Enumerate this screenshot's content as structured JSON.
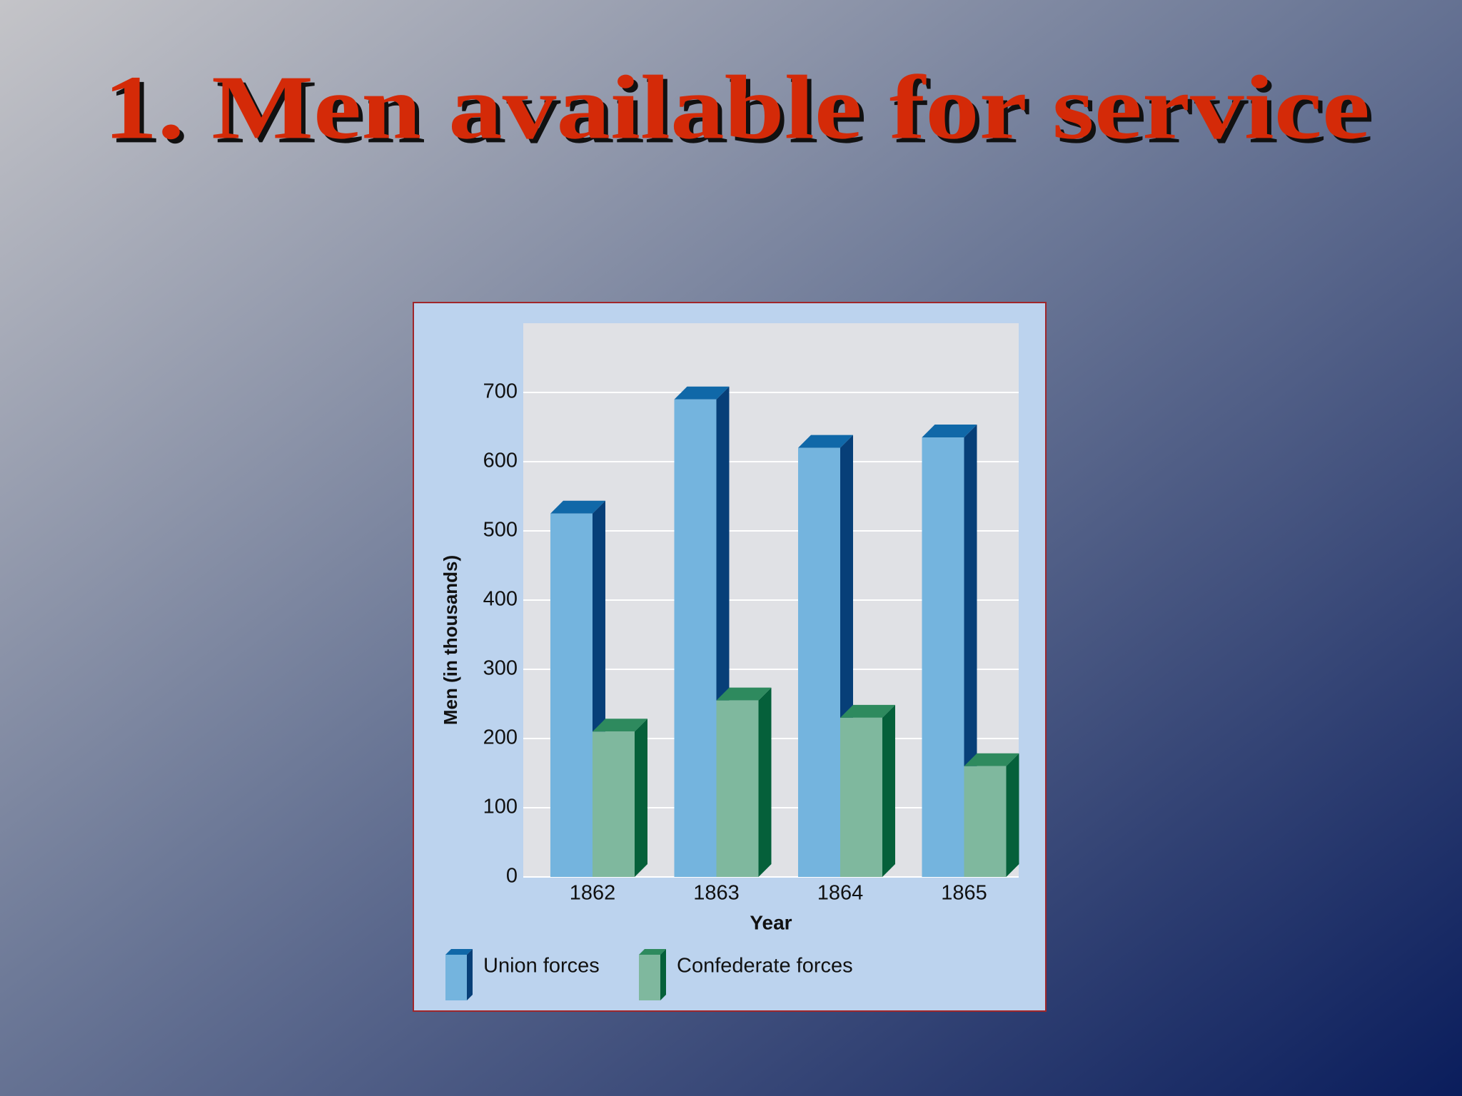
{
  "slide_title": "1. Men available for service",
  "chart_data": {
    "type": "bar",
    "y_label": "Men (in thousands)",
    "x_label": "Year",
    "categories": [
      "1862",
      "1863",
      "1864",
      "1865"
    ],
    "series": [
      {
        "name": "Union forces",
        "color": "#74b4de",
        "values": [
          525,
          690,
          620,
          635
        ]
      },
      {
        "name": "Confederate forces",
        "color": "#7fb89e",
        "values": [
          210,
          255,
          230,
          160
        ]
      }
    ],
    "ylim": [
      0,
      800
    ],
    "yticks": [
      0,
      100,
      200,
      300,
      400,
      500,
      600,
      700
    ],
    "grid": true
  }
}
